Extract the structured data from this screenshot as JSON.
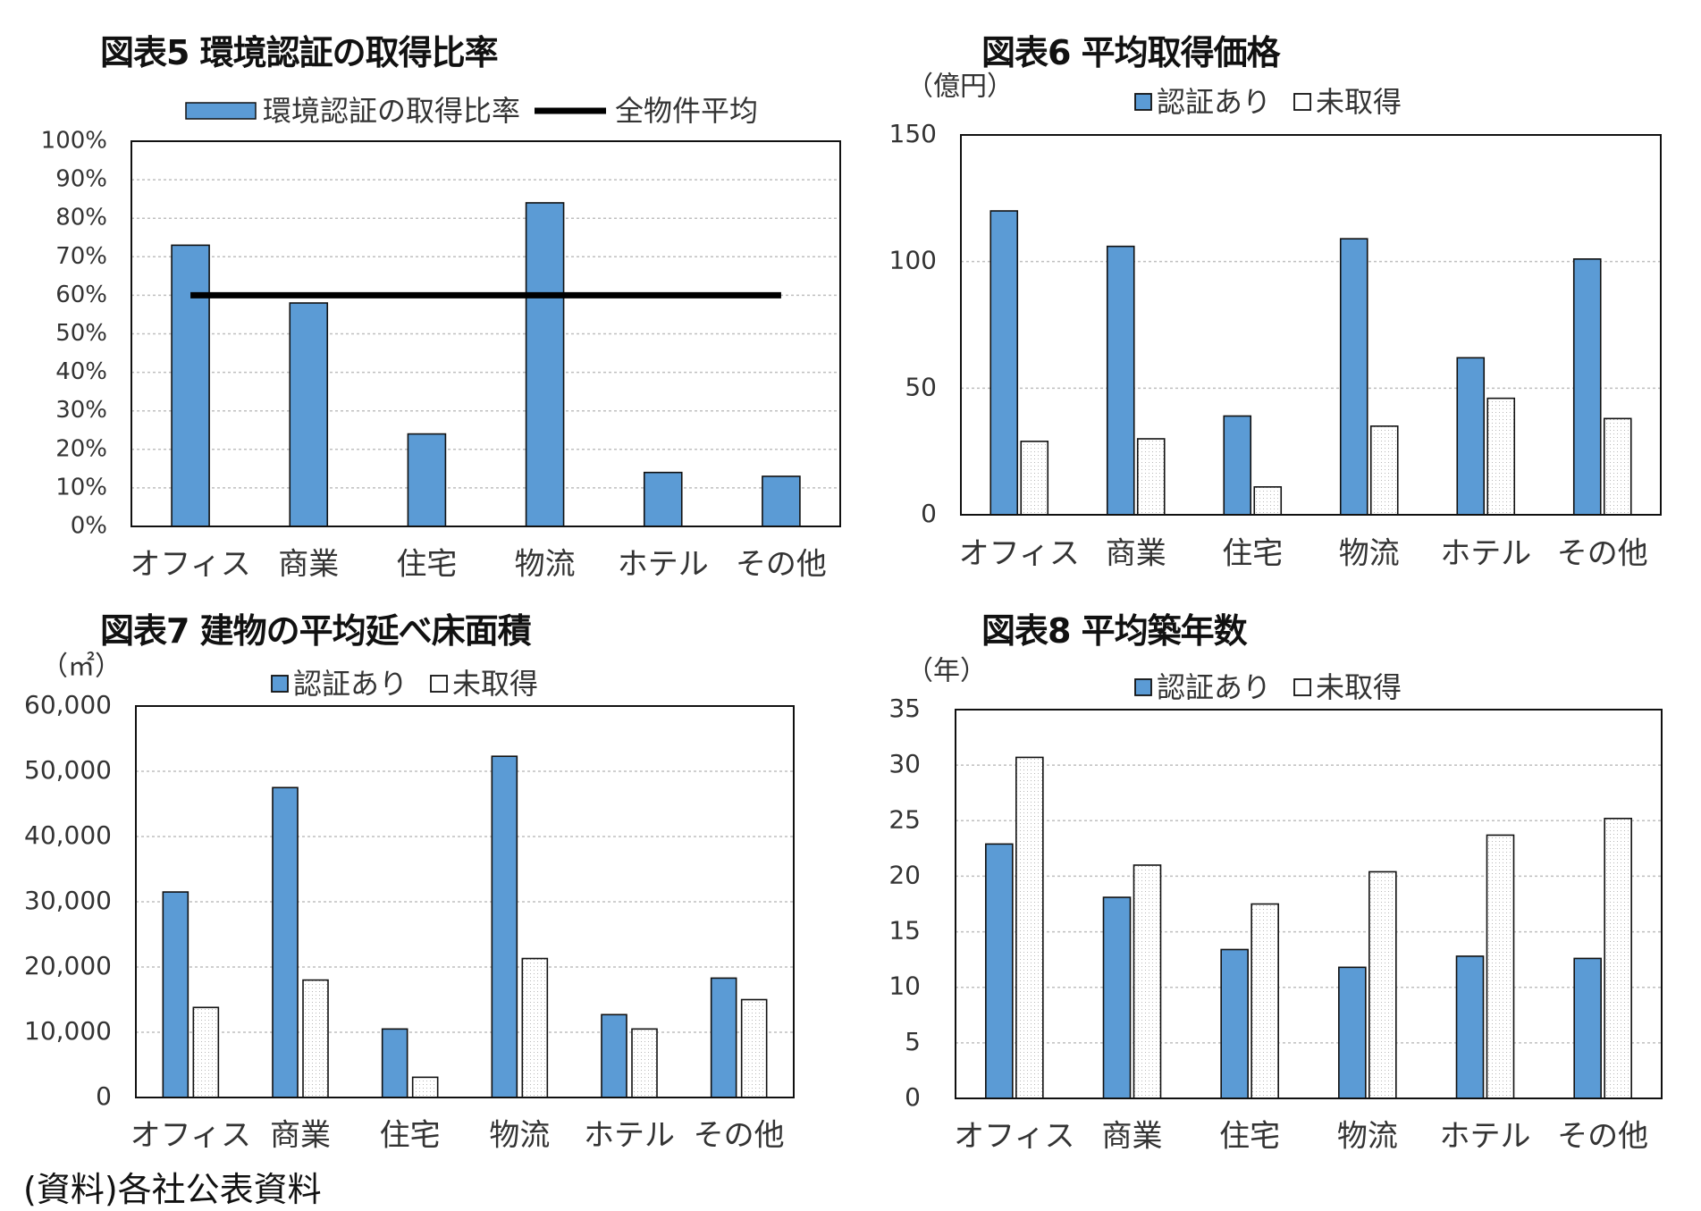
{
  "source_note": "(資料)各社公表資料",
  "colors": {
    "certified": "#5b9bd5",
    "uncertified": "#ffffff",
    "outline": "#111111",
    "grid": "#bfbfbf",
    "avg_line": "#000000"
  },
  "chart_data": [
    {
      "type": "bar",
      "title": "図表5 環境認証の取得比率",
      "unit_label": "",
      "categories": [
        "オフィス",
        "商業",
        "住宅",
        "物流",
        "ホテル",
        "その他"
      ],
      "series": [
        {
          "name": "環境認証の取得比率",
          "values": [
            0.73,
            0.58,
            0.24,
            0.84,
            0.14,
            0.13
          ]
        }
      ],
      "reference_line": {
        "name": "全物件平均",
        "value": 0.6
      },
      "ylim": [
        0,
        1
      ],
      "yticks": [
        "0%",
        "10%",
        "20%",
        "30%",
        "40%",
        "50%",
        "60%",
        "70%",
        "80%",
        "90%",
        "100%"
      ],
      "grid": true,
      "legend": "top"
    },
    {
      "type": "bar",
      "title": "図表6 平均取得価格",
      "unit_label": "（億円）",
      "categories": [
        "オフィス",
        "商業",
        "住宅",
        "物流",
        "ホテル",
        "その他"
      ],
      "series": [
        {
          "name": "認証あり",
          "values": [
            120,
            106,
            39,
            109,
            62,
            101
          ]
        },
        {
          "name": "未取得",
          "values": [
            29,
            30,
            11,
            35,
            46,
            38
          ]
        }
      ],
      "ylim": [
        0,
        150
      ],
      "yticks": [
        "0",
        "50",
        "100",
        "150"
      ],
      "grid": true,
      "legend": "top"
    },
    {
      "type": "bar",
      "title": "図表7 建物の平均延べ床面積",
      "unit_label": "（㎡）",
      "categories": [
        "オフィス",
        "商業",
        "住宅",
        "物流",
        "ホテル",
        "その他"
      ],
      "series": [
        {
          "name": "認証あり",
          "values": [
            31500,
            47500,
            10500,
            52300,
            12700,
            18300
          ]
        },
        {
          "name": "未取得",
          "values": [
            13800,
            18000,
            3100,
            21300,
            10500,
            15000
          ]
        }
      ],
      "ylim": [
        0,
        60000
      ],
      "yticks": [
        "0",
        "10,000",
        "20,000",
        "30,000",
        "40,000",
        "50,000",
        "60,000"
      ],
      "grid": true,
      "legend": "top"
    },
    {
      "type": "bar",
      "title": "図表8 平均築年数",
      "unit_label": "（年）",
      "categories": [
        "オフィス",
        "商業",
        "住宅",
        "物流",
        "ホテル",
        "その他"
      ],
      "series": [
        {
          "name": "認証あり",
          "values": [
            22.9,
            18.1,
            13.4,
            11.8,
            12.8,
            12.6
          ]
        },
        {
          "name": "未取得",
          "values": [
            30.7,
            21.0,
            17.5,
            20.4,
            23.7,
            25.2
          ]
        }
      ],
      "ylim": [
        0,
        35
      ],
      "yticks": [
        "0",
        "5",
        "10",
        "15",
        "20",
        "25",
        "30",
        "35"
      ],
      "grid": true,
      "legend": "top"
    }
  ]
}
